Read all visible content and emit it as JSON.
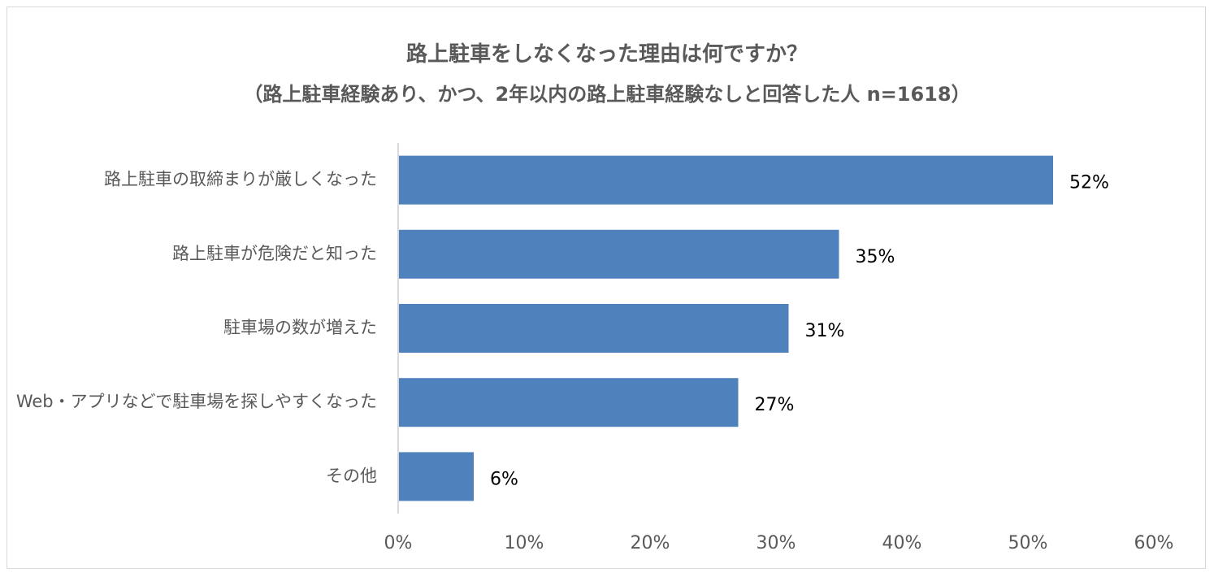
{
  "chart_data": {
    "type": "bar",
    "orientation": "horizontal",
    "title": "路上駐車をしなくなった理由は何ですか？",
    "subtitle": "（路上駐車経験あり、かつ、2年以内の路上駐車経験なしと回答した人 n=1618）",
    "categories": [
      "路上駐車の取締まりが厳しくなった",
      "路上駐車が危険だと知った",
      "駐車場の数が増えた",
      "Web・アプリなどで駐車場を探しやすくなった",
      "その他"
    ],
    "values": [
      52,
      35,
      31,
      27,
      6
    ],
    "data_labels": [
      "52%",
      "35%",
      "31%",
      "27%",
      "6%"
    ],
    "xlim": [
      0,
      60
    ],
    "x_ticks": [
      0,
      10,
      20,
      30,
      40,
      50,
      60
    ],
    "x_tick_labels": [
      "0%",
      "10%",
      "20%",
      "30%",
      "40%",
      "50%",
      "60%"
    ],
    "xlabel": "",
    "ylabel": "",
    "grid": false,
    "legend": "none",
    "colors": {
      "bar": "#4f81bd",
      "text": "#595959",
      "label": "#000000",
      "axis": "#d9d9d9"
    }
  }
}
